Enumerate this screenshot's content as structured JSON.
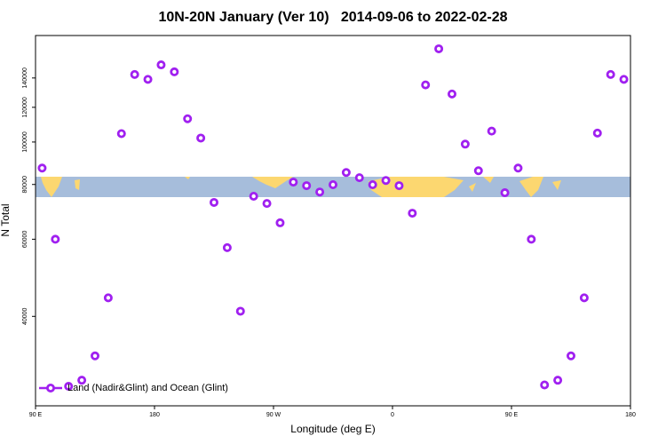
{
  "chart_data": {
    "type": "scatter",
    "title": "10N-20N January (Ver 10)   2014-09-06 to 2022-02-28",
    "x_label": "Longitude (deg E)",
    "y_label": "N Total",
    "log_y": true,
    "legend_position": "lower left",
    "xlim": [
      90,
      540
    ],
    "xticks": [
      {
        "value": 90,
        "label": "90 E"
      },
      180,
      {
        "value": 270,
        "label": "90 W"
      },
      {
        "value": 360,
        "label": "0"
      },
      {
        "value": 450,
        "label": "90 E"
      },
      {
        "value": 540,
        "label": "180"
      }
    ],
    "ylim": [
      25000,
      175000
    ],
    "yticks": [
      40000,
      60000,
      80000,
      100000,
      120000,
      140000
    ],
    "series": [
      {
        "name": "Land (Nadir&Glint) and Ocean (Glint)",
        "color": "#a020f0",
        "x": [
          95,
          105,
          115,
          125,
          135,
          145,
          155,
          165,
          175,
          185,
          195,
          205,
          215,
          225,
          235,
          245,
          255,
          265,
          275,
          285,
          295,
          305,
          315,
          325,
          335,
          345,
          355,
          365,
          375,
          385,
          395,
          405,
          415,
          425,
          435,
          445,
          455,
          465,
          475,
          485,
          495,
          505,
          515,
          525,
          535
        ],
        "values": [
          87200,
          60000,
          27700,
          28600,
          32500,
          44100,
          104500,
          142600,
          139000,
          150000,
          144600,
          113000,
          102100,
          72800,
          57400,
          41100,
          75200,
          72400,
          65400,
          81000,
          79500,
          76900,
          79900,
          85200,
          82900,
          79900,
          81700,
          79500,
          68800,
          135000,
          163200,
          128700,
          98900,
          86000,
          105900,
          76600,
          87200,
          60000,
          27900,
          28600,
          32500,
          44100,
          104800,
          142600,
          139000
        ]
      }
    ]
  }
}
